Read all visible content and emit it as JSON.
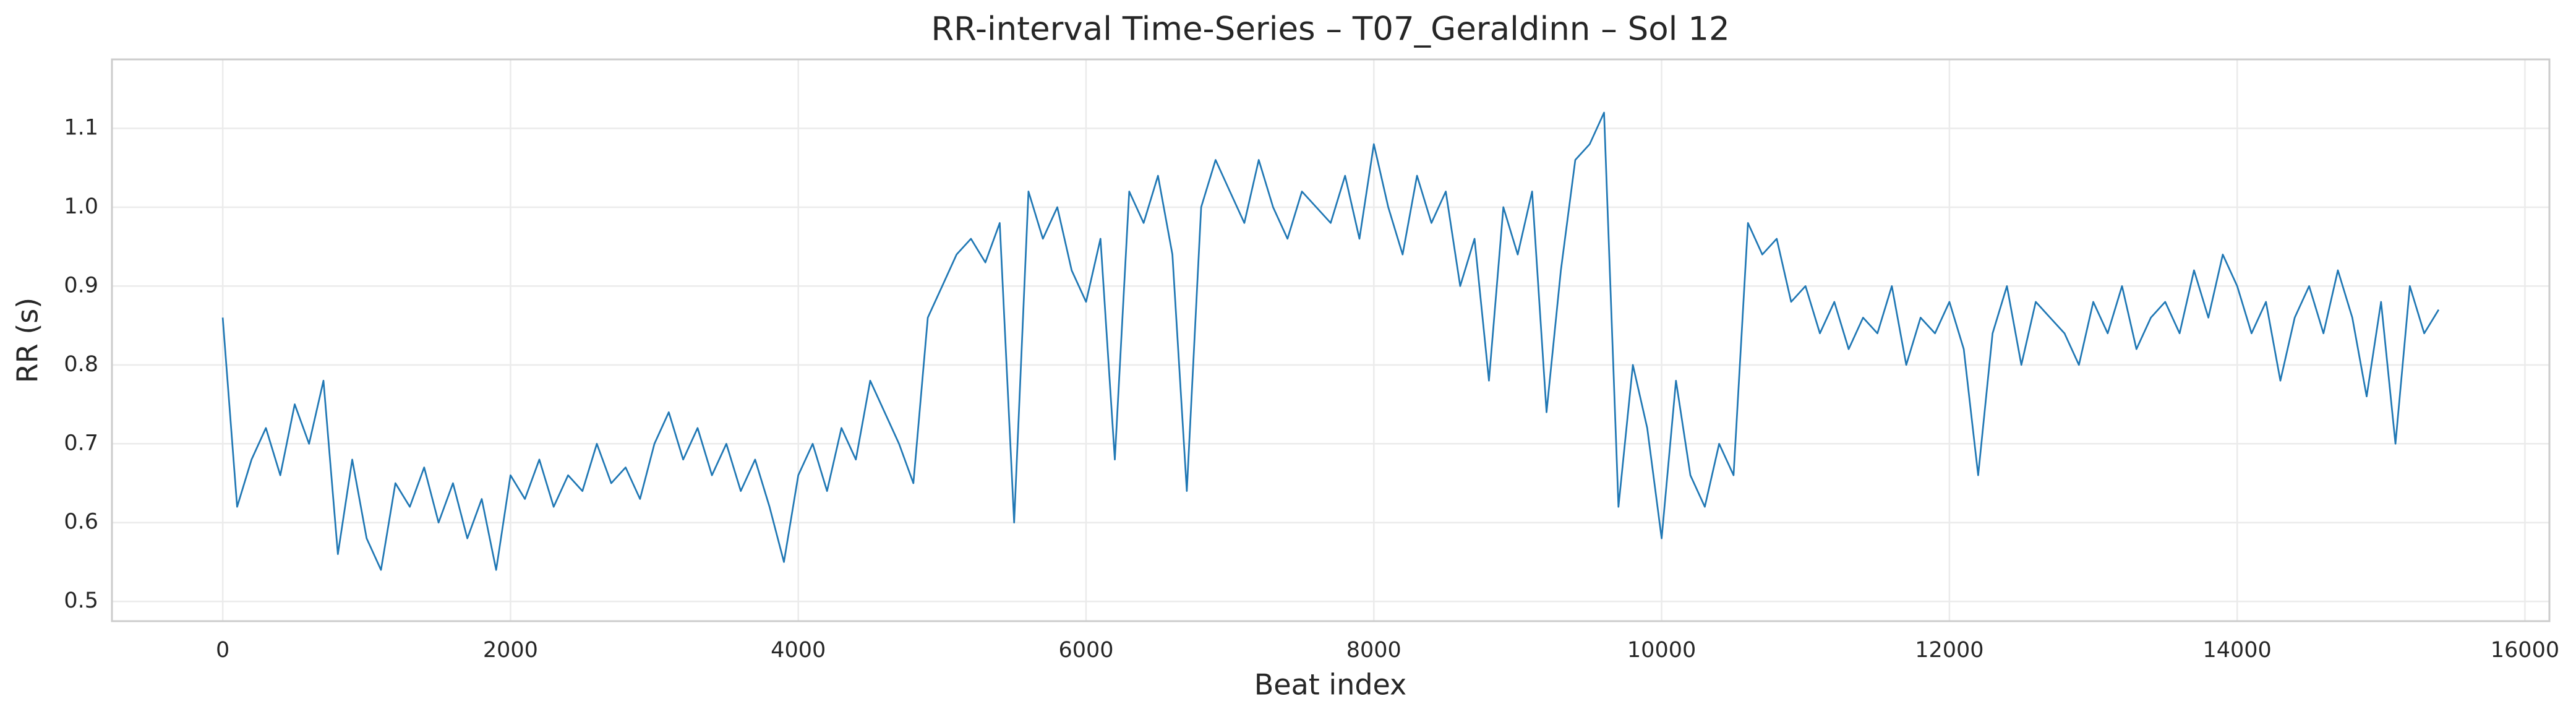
{
  "chart_data": {
    "type": "line",
    "title": "RR-interval Time-Series – T07_Geraldinn – Sol 12",
    "xlabel": "Beat index",
    "ylabel": "RR (s)",
    "x": [
      0,
      100,
      200,
      300,
      400,
      500,
      600,
      700,
      800,
      900,
      1000,
      1100,
      1200,
      1300,
      1400,
      1500,
      1600,
      1700,
      1800,
      1900,
      2000,
      2100,
      2200,
      2300,
      2400,
      2500,
      2600,
      2700,
      2800,
      2900,
      3000,
      3100,
      3200,
      3300,
      3400,
      3500,
      3600,
      3700,
      3800,
      3900,
      4000,
      4100,
      4200,
      4300,
      4400,
      4500,
      4600,
      4700,
      4800,
      4900,
      5000,
      5100,
      5200,
      5300,
      5400,
      5500,
      5600,
      5700,
      5800,
      5900,
      6000,
      6100,
      6200,
      6300,
      6400,
      6500,
      6600,
      6700,
      6800,
      6900,
      7000,
      7100,
      7200,
      7300,
      7400,
      7500,
      7600,
      7700,
      7800,
      7900,
      8000,
      8100,
      8200,
      8300,
      8400,
      8500,
      8600,
      8700,
      8800,
      8900,
      9000,
      9100,
      9200,
      9300,
      9400,
      9500,
      9600,
      9700,
      9800,
      9900,
      10000,
      10100,
      10200,
      10300,
      10400,
      10500,
      10600,
      10700,
      10800,
      10900,
      11000,
      11100,
      11200,
      11300,
      11400,
      11500,
      11600,
      11700,
      11800,
      11900,
      12000,
      12100,
      12200,
      12300,
      12400,
      12500,
      12600,
      12700,
      12800,
      12900,
      13000,
      13100,
      13200,
      13300,
      13400,
      13500,
      13600,
      13700,
      13800,
      13900,
      14000,
      14100,
      14200,
      14300,
      14400,
      14500,
      14600,
      14700,
      14800,
      14900,
      15000,
      15100,
      15200,
      15300,
      15400
    ],
    "series": [
      {
        "name": "RR",
        "color": "#1f77b4",
        "values": [
          0.86,
          0.62,
          0.68,
          0.72,
          0.66,
          0.75,
          0.7,
          0.78,
          0.56,
          0.68,
          0.58,
          0.54,
          0.65,
          0.62,
          0.67,
          0.6,
          0.65,
          0.58,
          0.63,
          0.54,
          0.66,
          0.63,
          0.68,
          0.62,
          0.66,
          0.64,
          0.7,
          0.65,
          0.67,
          0.63,
          0.7,
          0.74,
          0.68,
          0.72,
          0.66,
          0.7,
          0.64,
          0.68,
          0.62,
          0.55,
          0.66,
          0.7,
          0.64,
          0.72,
          0.68,
          0.78,
          0.74,
          0.7,
          0.65,
          0.86,
          0.9,
          0.94,
          0.96,
          0.93,
          0.98,
          0.6,
          1.02,
          0.96,
          1.0,
          0.92,
          0.88,
          0.96,
          0.68,
          1.02,
          0.98,
          1.04,
          0.94,
          0.64,
          1.0,
          1.06,
          1.02,
          0.98,
          1.06,
          1.0,
          0.96,
          1.02,
          1.0,
          0.98,
          1.04,
          0.96,
          1.08,
          1.0,
          0.94,
          1.04,
          0.98,
          1.02,
          0.9,
          0.96,
          0.78,
          1.0,
          0.94,
          1.02,
          0.74,
          0.92,
          1.06,
          1.08,
          1.12,
          0.62,
          0.8,
          0.72,
          0.58,
          0.78,
          0.66,
          0.62,
          0.7,
          0.66,
          0.98,
          0.94,
          0.96,
          0.88,
          0.9,
          0.84,
          0.88,
          0.82,
          0.86,
          0.84,
          0.9,
          0.8,
          0.86,
          0.84,
          0.88,
          0.82,
          0.66,
          0.84,
          0.9,
          0.8,
          0.88,
          0.86,
          0.84,
          0.8,
          0.88,
          0.84,
          0.9,
          0.82,
          0.86,
          0.88,
          0.84,
          0.92,
          0.86,
          0.94,
          0.9,
          0.84,
          0.88,
          0.78,
          0.86,
          0.9,
          0.84,
          0.92,
          0.86,
          0.76,
          0.88,
          0.7,
          0.9,
          0.84,
          0.87
        ]
      }
    ],
    "xlim": [
      -770,
      16170
    ],
    "xticks": [
      0,
      2000,
      4000,
      6000,
      8000,
      10000,
      12000,
      14000,
      16000
    ],
    "ylim": [
      0.475,
      1.1875
    ],
    "yticks": [
      0.5,
      0.6,
      0.7,
      0.8,
      0.9,
      {
        "value": 1,
        "label": "1.0"
      },
      1.1
    ],
    "grid": true
  }
}
